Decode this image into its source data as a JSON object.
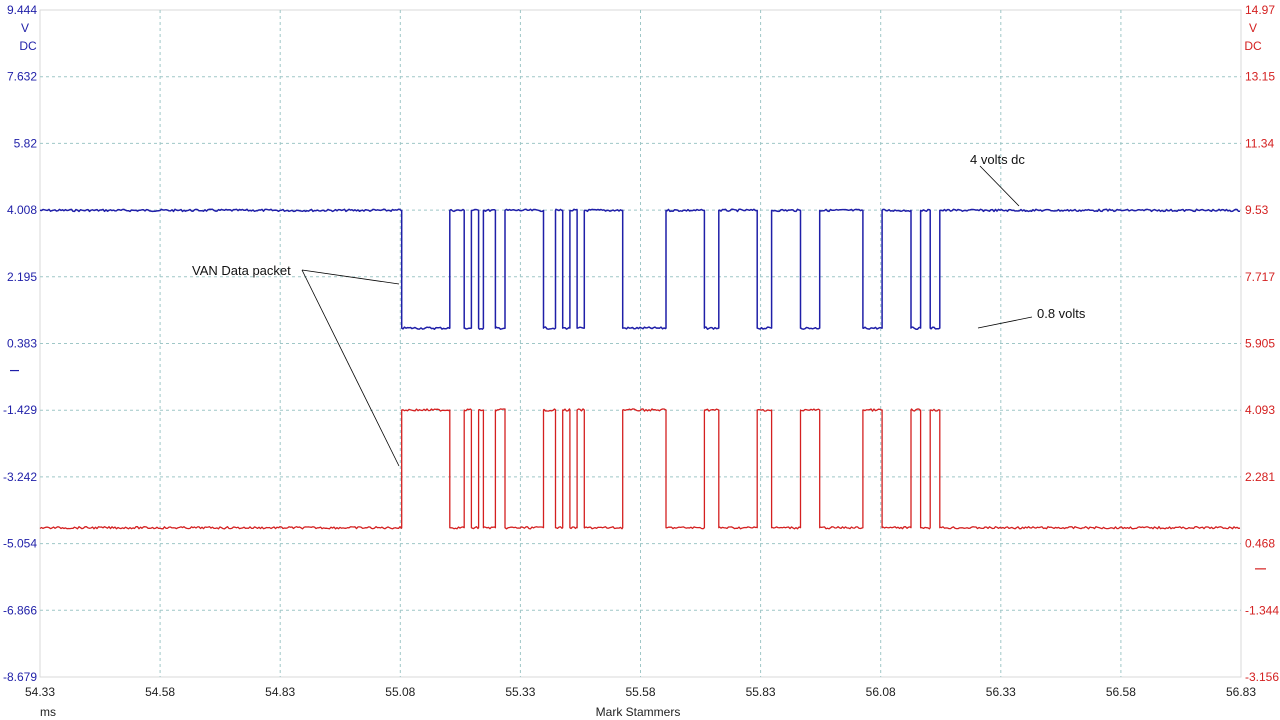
{
  "chart_data": {
    "type": "line",
    "title": "",
    "xlabel": "Mark Stammers",
    "x_unit": "ms",
    "xlim": [
      54.33,
      56.83
    ],
    "x_ticks": [
      "54.33",
      "54.58",
      "54.83",
      "55.08",
      "55.33",
      "55.58",
      "55.83",
      "56.08",
      "56.33",
      "56.58",
      "56.83"
    ],
    "grid": true,
    "axes": {
      "left": {
        "unit": "V",
        "coupling": "DC",
        "color": "#1f1fa8",
        "ylim": [
          -8.679,
          9.444
        ],
        "ticks": [
          "9.444",
          "7.632",
          "5.82",
          "4.008",
          "2.195",
          "0.383",
          "-1.429",
          "-3.242",
          "-5.054",
          "-6.866",
          "-8.679"
        ],
        "zero_marker": 0
      },
      "right": {
        "unit": "V",
        "coupling": "DC",
        "color": "#d42020",
        "ylim": [
          -3.156,
          14.97
        ],
        "ticks": [
          "14.97",
          "13.15",
          "11.34",
          "9.53",
          "7.717",
          "5.905",
          "4.093",
          "2.281",
          "0.468",
          "-1.344",
          "-3.156"
        ],
        "zero_marker": 0
      }
    },
    "series": [
      {
        "axis": "left",
        "color": "#1f1fa8",
        "high": 4.0,
        "low": 0.8,
        "idle_level": "high",
        "transitions": [
          55.083,
          55.183,
          55.213,
          55.228,
          55.243,
          55.253,
          55.278,
          55.298,
          55.378,
          55.403,
          55.418,
          55.433,
          55.448,
          55.463,
          55.543,
          55.633,
          55.713,
          55.743,
          55.823,
          55.853,
          55.913,
          55.953,
          56.043,
          56.083,
          56.143,
          56.163,
          56.183,
          56.203
        ]
      },
      {
        "axis": "right",
        "color": "#d42020",
        "high": 4.1,
        "low": 0.9,
        "idle_level": "low",
        "transitions": [
          55.083,
          55.183,
          55.213,
          55.228,
          55.243,
          55.253,
          55.278,
          55.298,
          55.378,
          55.403,
          55.418,
          55.433,
          55.448,
          55.463,
          55.543,
          55.633,
          55.713,
          55.743,
          55.823,
          55.853,
          55.913,
          55.953,
          56.043,
          56.083,
          56.143,
          56.163,
          56.183,
          56.203
        ]
      }
    ],
    "annotations": [
      {
        "text": "VAN Data packet",
        "targets": [
          [
            55.08,
            2.1
          ],
          [
            55.08,
            -3.6
          ]
        ]
      },
      {
        "text": "4 volts dc",
        "targets": [
          [
            56.33,
            4.0
          ]
        ]
      },
      {
        "text": "0.8 volts",
        "targets": [
          [
            56.23,
            0.8
          ]
        ]
      }
    ]
  }
}
